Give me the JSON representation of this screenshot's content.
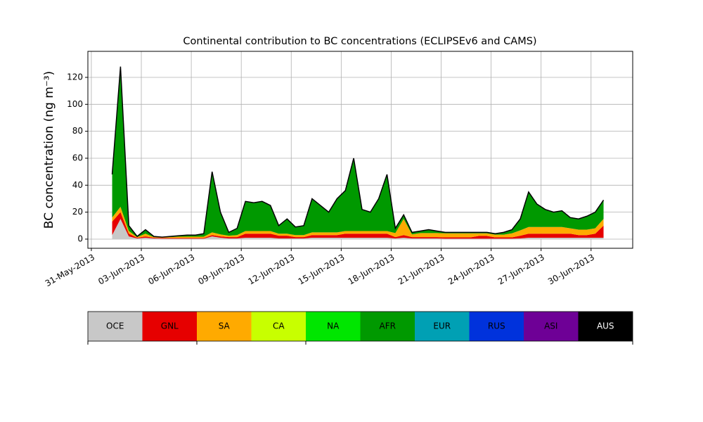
{
  "chart_data": {
    "type": "stacked_area",
    "title": "Continental contribution to BC concentrations (ECLIPSEv6 and CAMS)",
    "y_label": "BC concentration (ng m⁻³)",
    "x": [
      "2013-06-01T06:00",
      "2013-06-01T18:00",
      "2013-06-02T06:00",
      "2013-06-02T18:00",
      "2013-06-03T06:00",
      "2013-06-03T18:00",
      "2013-06-04T06:00",
      "2013-06-04T18:00",
      "2013-06-05T06:00",
      "2013-06-05T18:00",
      "2013-06-06T06:00",
      "2013-06-06T18:00",
      "2013-06-07T06:00",
      "2013-06-07T18:00",
      "2013-06-08T06:00",
      "2013-06-08T18:00",
      "2013-06-09T06:00",
      "2013-06-09T18:00",
      "2013-06-10T06:00",
      "2013-06-10T18:00",
      "2013-06-11T06:00",
      "2013-06-11T18:00",
      "2013-06-12T06:00",
      "2013-06-12T18:00",
      "2013-06-13T06:00",
      "2013-06-13T18:00",
      "2013-06-14T06:00",
      "2013-06-14T18:00",
      "2013-06-15T06:00",
      "2013-06-15T18:00",
      "2013-06-16T06:00",
      "2013-06-16T18:00",
      "2013-06-17T06:00",
      "2013-06-17T18:00",
      "2013-06-18T06:00",
      "2013-06-18T18:00",
      "2013-06-19T06:00",
      "2013-06-19T18:00",
      "2013-06-20T06:00",
      "2013-06-20T18:00",
      "2013-06-21T06:00",
      "2013-06-21T18:00",
      "2013-06-22T06:00",
      "2013-06-22T18:00",
      "2013-06-23T06:00",
      "2013-06-23T18:00",
      "2013-06-24T06:00",
      "2013-06-24T18:00",
      "2013-06-25T06:00",
      "2013-06-25T18:00",
      "2013-06-26T06:00",
      "2013-06-26T18:00",
      "2013-06-27T06:00",
      "2013-06-27T18:00",
      "2013-06-28T06:00",
      "2013-06-28T18:00",
      "2013-06-29T06:00",
      "2013-06-29T18:00",
      "2013-06-30T06:00",
      "2013-06-30T18:00"
    ],
    "series": [
      {
        "name": "OCE",
        "color": "#c8c8c8",
        "values": [
          3,
          15,
          2,
          0.5,
          1,
          0.5,
          0.3,
          0.3,
          0.3,
          0.3,
          0.3,
          0.3,
          2,
          1,
          0.5,
          0.5,
          1,
          1,
          1,
          1,
          0.5,
          0.5,
          0.5,
          0.5,
          1,
          1,
          1,
          1,
          1,
          1,
          1,
          1,
          1,
          1,
          0.5,
          1,
          0.5,
          0.5,
          0.5,
          0.5,
          0.3,
          0.3,
          0.3,
          0.3,
          0.3,
          0.3,
          0.3,
          0.3,
          0.3,
          0.5,
          1,
          1,
          1,
          1,
          1,
          1,
          1,
          1,
          1,
          1
        ]
      },
      {
        "name": "GNL",
        "color": "#e60000",
        "values": [
          10,
          5,
          2,
          0.5,
          1,
          0.5,
          0.5,
          0.5,
          0.5,
          0.5,
          0.5,
          0.5,
          1,
          1,
          1,
          1,
          3,
          3,
          3,
          3,
          2,
          2,
          1,
          1,
          2,
          2,
          2,
          2,
          3,
          3,
          3,
          3,
          3,
          3,
          1,
          2,
          1,
          1,
          1,
          1,
          1,
          1,
          1,
          1,
          2,
          2,
          1,
          1,
          1,
          2,
          3,
          3,
          3,
          3,
          3,
          3,
          2,
          2,
          3,
          9
        ]
      },
      {
        "name": "SA",
        "color": "#ffaa00",
        "values": [
          3,
          4,
          2,
          0.5,
          2,
          0.5,
          0.5,
          0.7,
          1,
          1,
          1,
          1,
          2,
          1.5,
          1,
          1.5,
          2,
          2,
          2,
          2,
          1.5,
          1.5,
          1.5,
          1.5,
          2,
          2,
          2,
          2,
          2,
          2,
          2,
          2,
          2,
          2,
          3,
          12,
          2,
          3,
          3,
          3,
          3,
          3,
          3,
          3,
          2,
          2,
          2,
          2,
          3,
          4,
          5,
          5,
          5,
          5,
          5,
          4,
          4,
          4,
          4,
          5
        ]
      },
      {
        "name": "CA",
        "color": "#c8ff00",
        "values": [
          0,
          0,
          0,
          0,
          0,
          0,
          0,
          0,
          0,
          0,
          0,
          0,
          0,
          0,
          0,
          0,
          0,
          0,
          0,
          0,
          0,
          0,
          0,
          0,
          0,
          0,
          0,
          0,
          0,
          0,
          0,
          0,
          0,
          0,
          0,
          0,
          0,
          0,
          0,
          0,
          0,
          0,
          0,
          0,
          0,
          0,
          0,
          0,
          0,
          0,
          0,
          0,
          0,
          0,
          0,
          0,
          0,
          0,
          0,
          0
        ]
      },
      {
        "name": "NA",
        "color": "#00e600",
        "values": [
          0,
          0,
          0,
          0,
          0,
          0,
          0,
          0,
          0,
          0,
          0,
          0,
          0,
          0,
          0,
          0,
          0,
          0,
          0,
          0,
          0,
          0,
          0,
          0,
          0,
          0,
          0,
          0,
          0,
          0,
          0,
          0,
          0,
          0,
          0,
          0,
          0,
          0,
          0,
          0,
          0,
          0,
          0,
          0,
          0,
          0,
          0,
          0,
          0,
          0,
          0,
          0,
          0,
          0,
          0,
          0,
          0,
          0,
          0,
          0
        ]
      },
      {
        "name": "AFR",
        "color": "#009900",
        "values": [
          32,
          104,
          4,
          0.5,
          3,
          0.5,
          0.2,
          0.5,
          0.7,
          1.2,
          1.2,
          2.2,
          45,
          16.5,
          2.5,
          5,
          22,
          21,
          22,
          19,
          6,
          11,
          6,
          7,
          25,
          20,
          15,
          25,
          30,
          54,
          16,
          14,
          24,
          42,
          3.5,
          3,
          1.5,
          1.5,
          2.5,
          1.5,
          0.7,
          0.7,
          0.7,
          0.7,
          0.7,
          0.7,
          0.7,
          1.7,
          2.7,
          8.5,
          26,
          17,
          13,
          11,
          12,
          8,
          8,
          10,
          12,
          14
        ]
      },
      {
        "name": "EUR",
        "color": "#00a0b4",
        "values": [
          0,
          0,
          0,
          0,
          0,
          0,
          0,
          0,
          0,
          0,
          0,
          0,
          0,
          0,
          0,
          0,
          0,
          0,
          0,
          0,
          0,
          0,
          0,
          0,
          0,
          0,
          0,
          0,
          0,
          0,
          0,
          0,
          0,
          0,
          0,
          0,
          0,
          0,
          0,
          0,
          0,
          0,
          0,
          0,
          0,
          0,
          0,
          0,
          0,
          0,
          0,
          0,
          0,
          0,
          0,
          0,
          0,
          0,
          0,
          0
        ]
      },
      {
        "name": "RUS",
        "color": "#0032dc",
        "values": [
          0,
          0,
          0,
          0,
          0,
          0,
          0,
          0,
          0,
          0,
          0,
          0,
          0,
          0,
          0,
          0,
          0,
          0,
          0,
          0,
          0,
          0,
          0,
          0,
          0,
          0,
          0,
          0,
          0,
          0,
          0,
          0,
          0,
          0,
          0,
          0,
          0,
          0,
          0,
          0,
          0,
          0,
          0,
          0,
          0,
          0,
          0,
          0,
          0,
          0,
          0,
          0,
          0,
          0,
          0,
          0,
          0,
          0,
          0,
          0
        ]
      },
      {
        "name": "ASI",
        "color": "#6e0096",
        "values": [
          0,
          0,
          0,
          0,
          0,
          0,
          0,
          0,
          0,
          0,
          0,
          0,
          0,
          0,
          0,
          0,
          0,
          0,
          0,
          0,
          0,
          0,
          0,
          0,
          0,
          0,
          0,
          0,
          0,
          0,
          0,
          0,
          0,
          0,
          0,
          0,
          0,
          0,
          0,
          0,
          0,
          0,
          0,
          0,
          0,
          0,
          0,
          0,
          0,
          0,
          0,
          0,
          0,
          0,
          0,
          0,
          0,
          0,
          0,
          0
        ]
      },
      {
        "name": "AUS",
        "color": "#000000",
        "values": [
          0,
          0,
          0,
          0,
          0,
          0,
          0,
          0,
          0,
          0,
          0,
          0,
          0,
          0,
          0,
          0,
          0,
          0,
          0,
          0,
          0,
          0,
          0,
          0,
          0,
          0,
          0,
          0,
          0,
          0,
          0,
          0,
          0,
          0,
          0,
          0,
          0,
          0,
          0,
          0,
          0,
          0,
          0,
          0,
          0,
          0,
          0,
          0,
          0,
          0,
          0,
          0,
          0,
          0,
          0,
          0,
          0,
          0,
          0,
          0
        ]
      }
    ],
    "xlim": [
      "2013-05-30T19:00",
      "2013-07-02T12:00"
    ],
    "xticks": [
      {
        "value": "2013-05-31T00:00",
        "label": "31-May-2013"
      },
      {
        "value": "2013-06-03T00:00",
        "label": "03-Jun-2013"
      },
      {
        "value": "2013-06-06T00:00",
        "label": "06-Jun-2013"
      },
      {
        "value": "2013-06-09T00:00",
        "label": "09-Jun-2013"
      },
      {
        "value": "2013-06-12T00:00",
        "label": "12-Jun-2013"
      },
      {
        "value": "2013-06-15T00:00",
        "label": "15-Jun-2013"
      },
      {
        "value": "2013-06-18T00:00",
        "label": "18-Jun-2013"
      },
      {
        "value": "2013-06-21T00:00",
        "label": "21-Jun-2013"
      },
      {
        "value": "2013-06-24T00:00",
        "label": "24-Jun-2013"
      },
      {
        "value": "2013-06-27T00:00",
        "label": "27-Jun-2013"
      },
      {
        "value": "2013-06-30T00:00",
        "label": "30-Jun-2013"
      }
    ],
    "ylim": [
      -6.8,
      139.3
    ],
    "yticks": [
      0,
      20,
      40,
      60,
      80,
      100,
      120
    ],
    "grid": true
  }
}
